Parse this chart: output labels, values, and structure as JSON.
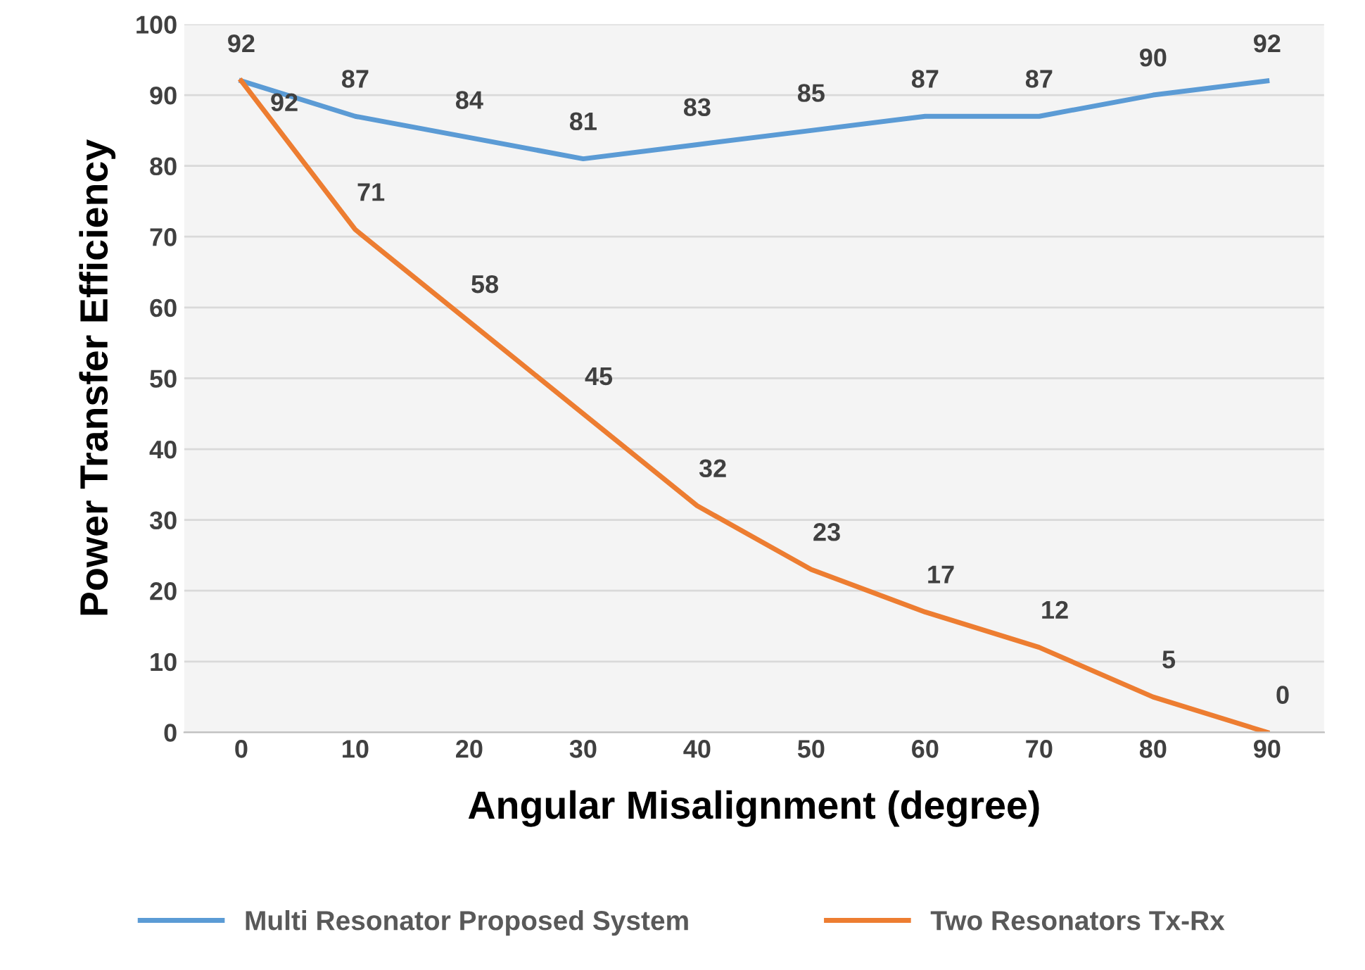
{
  "chart_data": {
    "type": "line",
    "xlabel": "Angular Misalignment (degree)",
    "ylabel": "Power Transfer Efficiency",
    "categories": [
      "0",
      "10",
      "20",
      "30",
      "40",
      "50",
      "60",
      "70",
      "80",
      "90"
    ],
    "series": [
      {
        "name": "Multi Resonator Proposed System",
        "color": "#5b9bd5",
        "values": [
          92,
          87,
          84,
          81,
          83,
          85,
          87,
          87,
          90,
          92
        ]
      },
      {
        "name": "Two Resonators Tx-Rx",
        "color": "#ed7d31",
        "values": [
          92,
          71,
          58,
          45,
          32,
          23,
          17,
          12,
          5,
          0
        ]
      }
    ],
    "ylim": [
      0,
      100
    ],
    "yticks": [
      0,
      10,
      20,
      30,
      40,
      50,
      60,
      70,
      80,
      90,
      100
    ],
    "grid": "y",
    "legend": "bottom",
    "data_labels": true,
    "marker": "none",
    "line_style": "solid"
  }
}
